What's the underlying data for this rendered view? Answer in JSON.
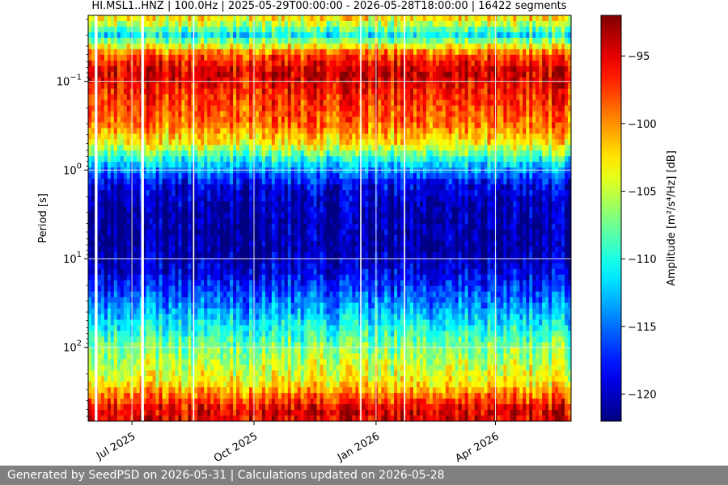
{
  "chart_data": {
    "type": "heatmap",
    "title": "HI.MSL1..HNZ | 100.0Hz | 2025-05-29T00:00:00 - 2026-05-28T18:00:00 | 16422 segments",
    "xlabel": "",
    "ylabel": "Period [s]",
    "x_range": [
      "2025-05-29",
      "2026-05-28"
    ],
    "x_ticks": [
      {
        "date": "2025-07-01",
        "label": "Jul 2025"
      },
      {
        "date": "2025-10-01",
        "label": "Oct 2025"
      },
      {
        "date": "2026-01-01",
        "label": "Jan 2026"
      },
      {
        "date": "2026-04-01",
        "label": "Apr 2026"
      }
    ],
    "y_scale": "log",
    "y_inverted": true,
    "ylim": [
      0.018,
      680
    ],
    "y_ticks": [
      {
        "value": 0.1,
        "base": "10",
        "exp": "−1"
      },
      {
        "value": 1,
        "base": "10",
        "exp": "0"
      },
      {
        "value": 10,
        "base": "10",
        "exp": "1"
      },
      {
        "value": 100,
        "base": "10",
        "exp": "2"
      }
    ],
    "grid": true,
    "colormap": "jet",
    "colorbar": {
      "label": "Amplitude [m²/s⁴/Hz] [dB]",
      "range": [
        -122,
        -92
      ],
      "ticks": [
        {
          "value": -95,
          "label": "−95"
        },
        {
          "value": -100,
          "label": "−100"
        },
        {
          "value": -105,
          "label": "−105"
        },
        {
          "value": -110,
          "label": "−110"
        },
        {
          "value": -115,
          "label": "−115"
        },
        {
          "value": -120,
          "label": "−120"
        }
      ]
    },
    "amplitude_profile": [
      {
        "period": 0.02,
        "db": -103
      },
      {
        "period": 0.03,
        "db": -111
      },
      {
        "period": 0.05,
        "db": -98
      },
      {
        "period": 0.08,
        "db": -94
      },
      {
        "period": 0.15,
        "db": -97
      },
      {
        "period": 0.3,
        "db": -99
      },
      {
        "period": 0.5,
        "db": -103
      },
      {
        "period": 0.8,
        "db": -111
      },
      {
        "period": 1.5,
        "db": -119
      },
      {
        "period": 3,
        "db": -121
      },
      {
        "period": 8,
        "db": -121
      },
      {
        "period": 15,
        "db": -119
      },
      {
        "period": 40,
        "db": -113
      },
      {
        "period": 100,
        "db": -107
      },
      {
        "period": 250,
        "db": -103
      },
      {
        "period": 500,
        "db": -95
      }
    ],
    "gaps": [
      {
        "start": "2025-06-03",
        "end": "2025-06-05"
      },
      {
        "start": "2025-07-08",
        "end": "2025-07-10"
      },
      {
        "start": "2025-08-16",
        "end": "2025-08-17"
      },
      {
        "start": "2025-12-20",
        "end": "2025-12-21"
      },
      {
        "start": "2026-01-22",
        "end": "2026-01-23"
      }
    ]
  },
  "footer": {
    "text": "Generated by SeedPSD on 2026-05-31 | Calculations updated on 2026-05-28"
  }
}
